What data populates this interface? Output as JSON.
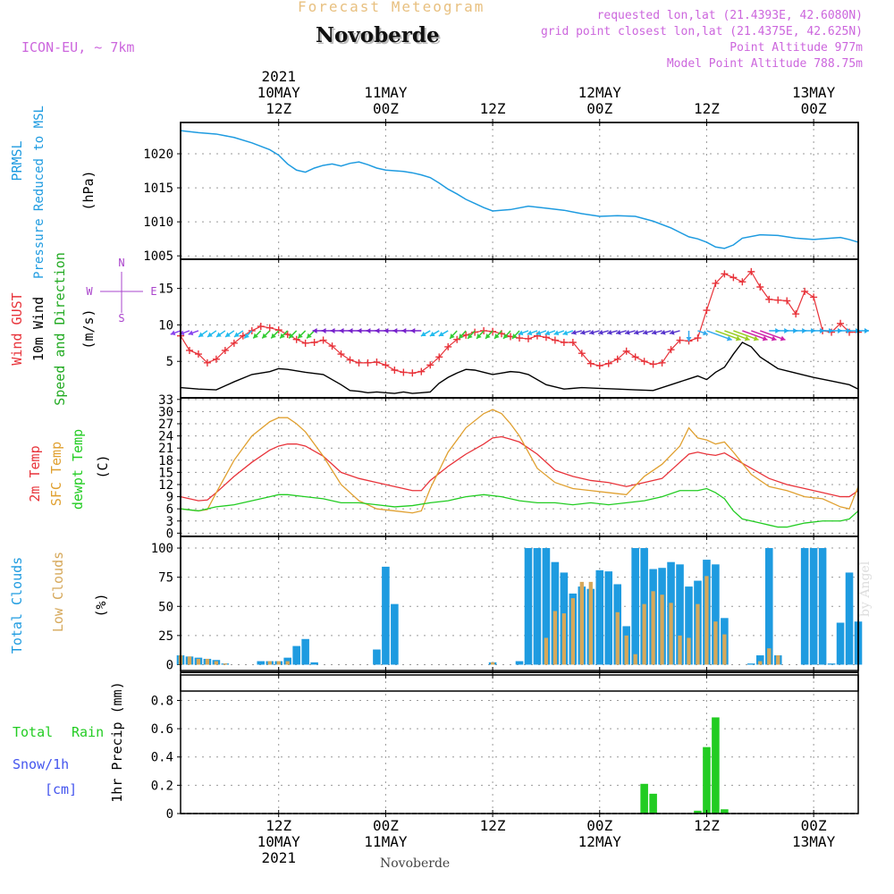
{
  "header": {
    "subtitle": "Forecast Meteogram",
    "location": "Novoberde",
    "model": "ICON-EU, ~ 7km",
    "requested": "requested lon,lat (21.4393E, 42.6080N)",
    "gridpoint": "grid point closest lon,lat (21.4375E, 42.625N)",
    "point_altitude": "Point Altitude 977m",
    "model_altitude": "Model Point Altitude 788.75m",
    "credit": "by Angel",
    "footer_location": "Novoberde"
  },
  "colors": {
    "pressure": "#1e9be0",
    "gust": "#e8333a",
    "wind": "#000000",
    "temp2m": "#e8333a",
    "sfc": "#e0a030",
    "dewpt": "#22cc22",
    "clouds_total": "#1e9be0",
    "clouds_low": "#d6a85a",
    "rain": "#22cc22",
    "snow": "#4455ee",
    "header": "#cc66dd",
    "subtitle": "#e8c080"
  },
  "time_axis": {
    "top_ticks": [
      {
        "h": 12,
        "lines": [
          "2021",
          "10MAY",
          "12Z"
        ]
      },
      {
        "h": 24,
        "lines": [
          "11MAY",
          "00Z"
        ]
      },
      {
        "h": 36,
        "lines": [
          "12Z"
        ]
      },
      {
        "h": 48,
        "lines": [
          "12MAY",
          "00Z"
        ]
      },
      {
        "h": 60,
        "lines": [
          "12Z"
        ]
      },
      {
        "h": 72,
        "lines": [
          "13MAY",
          "00Z"
        ]
      }
    ],
    "bottom_ticks": [
      {
        "h": 12,
        "lines": [
          "12Z",
          "10MAY",
          "2021"
        ]
      },
      {
        "h": 24,
        "lines": [
          "00Z",
          "11MAY"
        ]
      },
      {
        "h": 36,
        "lines": [
          "12Z"
        ]
      },
      {
        "h": 48,
        "lines": [
          "00Z",
          "12MAY"
        ]
      },
      {
        "h": 60,
        "lines": [
          "12Z"
        ]
      },
      {
        "h": 72,
        "lines": [
          "00Z",
          "13MAY"
        ]
      }
    ]
  },
  "chart_data": [
    {
      "type": "line",
      "panel": "pressure",
      "labels": [
        "PRMSL",
        "Pressure Reduced to MSL"
      ],
      "ylabel": "(hPa)",
      "x_unit": "hours since 2021-05-10 00Z",
      "xlim": [
        1,
        77
      ],
      "ylim": [
        1005,
        1024
      ],
      "yticks": [
        1005,
        1010,
        1015,
        1020
      ],
      "series": [
        {
          "name": "PRMSL",
          "x": [
            1,
            3,
            5,
            7,
            9,
            11,
            12,
            13,
            14,
            15,
            16,
            17,
            18,
            19,
            20,
            21,
            22,
            23,
            24,
            25,
            26,
            27,
            28,
            29,
            30,
            31,
            32,
            33,
            34,
            35,
            36,
            38,
            40,
            42,
            44,
            46,
            48,
            50,
            52,
            54,
            56,
            58,
            59,
            60,
            61,
            62,
            63,
            64,
            66,
            68,
            70,
            72,
            74,
            75,
            76,
            77
          ],
          "values": [
            1023.4,
            1023.1,
            1022.9,
            1022.4,
            1021.6,
            1020.6,
            1019.8,
            1018.5,
            1017.6,
            1017.3,
            1017.9,
            1018.3,
            1018.5,
            1018.2,
            1018.6,
            1018.8,
            1018.4,
            1017.9,
            1017.6,
            1017.5,
            1017.4,
            1017.2,
            1016.9,
            1016.5,
            1015.7,
            1014.8,
            1014.1,
            1013.3,
            1012.7,
            1012.1,
            1011.6,
            1011.8,
            1012.3,
            1012.0,
            1011.7,
            1011.2,
            1010.8,
            1010.9,
            1010.8,
            1010.1,
            1009.1,
            1007.8,
            1007.5,
            1007.0,
            1006.3,
            1006.1,
            1006.6,
            1007.6,
            1008.1,
            1008.0,
            1007.6,
            1007.4,
            1007.6,
            1007.7,
            1007.4,
            1007.0
          ]
        }
      ]
    },
    {
      "type": "line",
      "panel": "wind",
      "labels": [
        "Wind GUST",
        "10m Wind",
        "Speed and Direction"
      ],
      "ylabel": "(m/s)",
      "compass": {
        "n": "N",
        "s": "S",
        "w": "W",
        "e": "E"
      },
      "xlim": [
        1,
        77
      ],
      "ylim": [
        0,
        19
      ],
      "yticks": [
        5,
        10,
        15
      ],
      "series": [
        {
          "name": "Wind GUST",
          "marker": "+",
          "x": [
            1,
            2,
            3,
            4,
            5,
            6,
            7,
            8,
            9,
            10,
            11,
            12,
            13,
            14,
            15,
            16,
            17,
            18,
            19,
            20,
            21,
            22,
            23,
            24,
            25,
            26,
            27,
            28,
            29,
            30,
            31,
            32,
            33,
            34,
            35,
            36,
            37,
            38,
            39,
            40,
            41,
            42,
            43,
            44,
            45,
            46,
            47,
            48,
            49,
            50,
            51,
            52,
            53,
            54,
            55,
            56,
            57,
            58,
            59,
            60,
            61,
            62,
            63,
            64,
            65,
            66,
            67,
            68,
            69,
            70,
            71,
            72,
            73,
            74,
            75,
            76,
            77
          ],
          "values": [
            8.5,
            6.5,
            6.0,
            4.8,
            5.3,
            6.5,
            7.5,
            8.5,
            9.2,
            9.8,
            9.6,
            9.3,
            8.7,
            8.0,
            7.5,
            7.6,
            7.9,
            7.1,
            6.0,
            5.2,
            4.8,
            4.8,
            4.9,
            4.5,
            3.8,
            3.5,
            3.4,
            3.6,
            4.5,
            5.6,
            7.0,
            8.0,
            8.6,
            9.0,
            9.2,
            9.1,
            8.8,
            8.4,
            8.2,
            8.1,
            8.5,
            8.3,
            7.9,
            7.6,
            7.6,
            6.1,
            4.7,
            4.4,
            4.7,
            5.3,
            6.4,
            5.6,
            5.0,
            4.6,
            4.8,
            6.6,
            7.9,
            7.8,
            8.2,
            12.0,
            15.7,
            17.0,
            16.5,
            15.9,
            17.3,
            15.2,
            13.5,
            13.4,
            13.3,
            11.5,
            14.6,
            13.8,
            9.2,
            9.0,
            10.2,
            9.0,
            9.0
          ]
        },
        {
          "name": "10m Wind",
          "x": [
            1,
            3,
            5,
            7,
            9,
            11,
            12,
            13,
            15,
            17,
            19,
            20,
            21,
            22,
            23,
            24,
            25,
            26,
            27,
            28,
            29,
            30,
            31,
            32,
            33,
            34,
            35,
            36,
            37,
            38,
            39,
            40,
            42,
            44,
            46,
            48,
            50,
            52,
            54,
            56,
            58,
            59,
            60,
            61,
            62,
            63,
            64,
            65,
            66,
            68,
            70,
            72,
            74,
            76,
            77
          ],
          "values": [
            1.4,
            1.2,
            1.1,
            2.2,
            3.2,
            3.6,
            4.0,
            3.9,
            3.5,
            3.2,
            1.8,
            1.0,
            0.9,
            0.7,
            0.8,
            0.7,
            0.6,
            0.8,
            0.6,
            0.7,
            0.8,
            2.0,
            2.8,
            3.4,
            3.9,
            3.8,
            3.5,
            3.2,
            3.4,
            3.6,
            3.5,
            3.2,
            1.8,
            1.2,
            1.4,
            1.3,
            1.2,
            1.1,
            1.0,
            1.8,
            2.6,
            3.0,
            2.5,
            3.5,
            4.2,
            6.0,
            7.6,
            7.0,
            5.6,
            4.0,
            3.4,
            2.8,
            2.3,
            1.8,
            1.2
          ]
        }
      ]
    },
    {
      "type": "line",
      "panel": "temperature",
      "labels": [
        "2m Temp",
        "SFC Temp",
        "dewpt Temp"
      ],
      "ylabel": "(C)",
      "xlim": [
        1,
        77
      ],
      "ylim": [
        0,
        33
      ],
      "yticks": [
        0,
        3,
        6,
        9,
        12,
        15,
        18,
        21,
        24,
        27,
        30,
        33
      ],
      "series": [
        {
          "name": "2m Temp",
          "x": [
            1,
            3,
            4,
            5,
            7,
            9,
            11,
            12,
            13,
            14,
            15,
            17,
            19,
            21,
            23,
            25,
            27,
            28,
            29,
            31,
            33,
            35,
            36,
            37,
            38,
            39,
            41,
            43,
            45,
            47,
            49,
            51,
            53,
            55,
            57,
            58,
            59,
            60,
            61,
            62,
            63,
            65,
            67,
            69,
            71,
            73,
            75,
            76,
            77
          ],
          "values": [
            9.0,
            8.0,
            8.2,
            10.0,
            14.0,
            17.5,
            20.5,
            21.5,
            22.0,
            22.0,
            21.5,
            19.0,
            15.0,
            13.5,
            12.5,
            11.5,
            10.5,
            10.5,
            13.0,
            16.5,
            19.5,
            22.0,
            23.5,
            23.8,
            23.2,
            22.5,
            19.5,
            15.5,
            14.0,
            13.0,
            12.5,
            11.5,
            12.5,
            13.5,
            17.5,
            19.5,
            20.0,
            19.5,
            19.2,
            19.8,
            18.5,
            16.0,
            13.5,
            12.0,
            11.0,
            10.0,
            9.0,
            9.0,
            10.5
          ]
        },
        {
          "name": "SFC Temp",
          "x": [
            1,
            3,
            4,
            5,
            7,
            9,
            11,
            12,
            13,
            14,
            15,
            17,
            19,
            21,
            23,
            25,
            27,
            28,
            29,
            31,
            33,
            35,
            36,
            37,
            38,
            39,
            41,
            43,
            45,
            47,
            49,
            51,
            53,
            55,
            57,
            58,
            59,
            60,
            61,
            62,
            63,
            65,
            67,
            69,
            71,
            73,
            75,
            76,
            77
          ],
          "values": [
            6.0,
            5.5,
            5.8,
            10.0,
            18.0,
            24.0,
            27.5,
            28.5,
            28.5,
            27.0,
            25.0,
            19.0,
            12.0,
            8.0,
            6.0,
            5.5,
            5.0,
            5.5,
            11.0,
            20.0,
            26.0,
            29.5,
            30.5,
            29.5,
            27.0,
            24.0,
            16.0,
            12.5,
            11.0,
            10.5,
            10.0,
            9.5,
            14.0,
            17.0,
            21.5,
            26.0,
            23.5,
            23.0,
            22.0,
            22.5,
            20.0,
            14.5,
            11.5,
            10.5,
            9.0,
            8.5,
            6.5,
            6.0,
            11.5
          ]
        },
        {
          "name": "dewpt Temp",
          "x": [
            1,
            3,
            5,
            7,
            9,
            11,
            12,
            13,
            15,
            17,
            19,
            21,
            23,
            25,
            27,
            29,
            31,
            33,
            35,
            37,
            39,
            41,
            43,
            45,
            47,
            49,
            51,
            53,
            55,
            57,
            59,
            60,
            61,
            62,
            63,
            64,
            65,
            66,
            67,
            68,
            69,
            71,
            73,
            75,
            76,
            77
          ],
          "values": [
            6.0,
            5.5,
            6.5,
            7.0,
            8.0,
            9.0,
            9.5,
            9.5,
            9.0,
            8.5,
            7.5,
            7.5,
            7.0,
            6.5,
            6.8,
            7.5,
            8.0,
            9.0,
            9.5,
            9.0,
            8.0,
            7.5,
            7.5,
            7.0,
            7.5,
            7.0,
            7.5,
            8.0,
            9.0,
            10.5,
            10.5,
            11.0,
            10.0,
            8.5,
            5.5,
            3.5,
            3.0,
            2.5,
            2.0,
            1.5,
            1.5,
            2.5,
            3.0,
            3.0,
            3.5,
            5.5
          ]
        }
      ]
    },
    {
      "type": "bar",
      "panel": "clouds",
      "labels": [
        "Total Clouds",
        "Low Clouds"
      ],
      "ylabel": "(%)",
      "xlim": [
        1,
        77
      ],
      "ylim": [
        0,
        100
      ],
      "yticks": [
        0,
        25,
        50,
        75,
        100
      ],
      "x": [
        1,
        2,
        3,
        4,
        5,
        6,
        7,
        8,
        9,
        10,
        11,
        12,
        13,
        14,
        15,
        16,
        17,
        18,
        19,
        20,
        21,
        22,
        23,
        24,
        25,
        26,
        27,
        28,
        29,
        30,
        31,
        32,
        33,
        34,
        35,
        36,
        37,
        38,
        39,
        40,
        41,
        42,
        43,
        44,
        45,
        46,
        47,
        48,
        49,
        50,
        51,
        52,
        53,
        54,
        55,
        56,
        57,
        58,
        59,
        60,
        61,
        62,
        63,
        64,
        65,
        66,
        67,
        68,
        69,
        70,
        71,
        72,
        73,
        74,
        75,
        76,
        77
      ],
      "series": [
        {
          "name": "Total Clouds",
          "values": [
            8,
            7,
            6,
            5,
            4,
            1,
            0,
            0,
            0,
            3,
            3,
            3,
            6,
            16,
            22,
            2,
            0,
            0,
            0,
            0,
            0,
            0,
            13,
            84,
            52,
            0,
            0,
            0,
            0,
            0,
            0,
            0,
            0,
            0,
            0,
            2,
            0,
            0,
            3,
            100,
            100,
            100,
            88,
            79,
            61,
            67,
            65,
            81,
            80,
            69,
            33,
            100,
            100,
            82,
            83,
            88,
            86,
            67,
            72,
            90,
            86,
            40,
            0,
            0,
            1,
            8,
            100,
            8,
            0,
            0,
            100,
            100,
            100,
            1,
            36,
            79,
            37
          ]
        },
        {
          "name": "Low Clouds",
          "values": [
            8,
            7,
            5,
            5,
            3,
            1,
            0,
            0,
            0,
            0,
            3,
            3,
            3,
            0,
            0,
            0,
            0,
            0,
            0,
            0,
            0,
            0,
            0,
            0,
            0,
            0,
            0,
            0,
            0,
            0,
            0,
            0,
            0,
            0,
            0,
            2,
            0,
            0,
            0,
            0,
            0,
            23,
            46,
            44,
            57,
            71,
            71,
            0,
            0,
            45,
            25,
            9,
            52,
            63,
            60,
            53,
            25,
            23,
            52,
            76,
            37,
            26,
            0,
            0,
            0,
            3,
            14,
            8,
            0,
            0,
            0,
            0,
            0,
            0,
            0,
            0,
            0
          ]
        }
      ]
    },
    {
      "type": "bar",
      "panel": "precipitation",
      "labels": [
        "Total",
        "Rain",
        "Snow/1h",
        "[cm]"
      ],
      "ylabel": "1hr Precip (mm)",
      "xlim": [
        1,
        77
      ],
      "ylim": [
        0,
        0.98
      ],
      "yticks": [
        0,
        0.2,
        0.4,
        0.6,
        0.8
      ],
      "ytick_labels": [
        "0",
        "0.2",
        "0.4",
        "0.6",
        "0.8"
      ],
      "series": [
        {
          "name": "Rain",
          "x": [
            53,
            54,
            59,
            60,
            61,
            62
          ],
          "values": [
            0.21,
            0.14,
            0.02,
            0.47,
            0.68,
            0.03
          ]
        }
      ]
    }
  ]
}
